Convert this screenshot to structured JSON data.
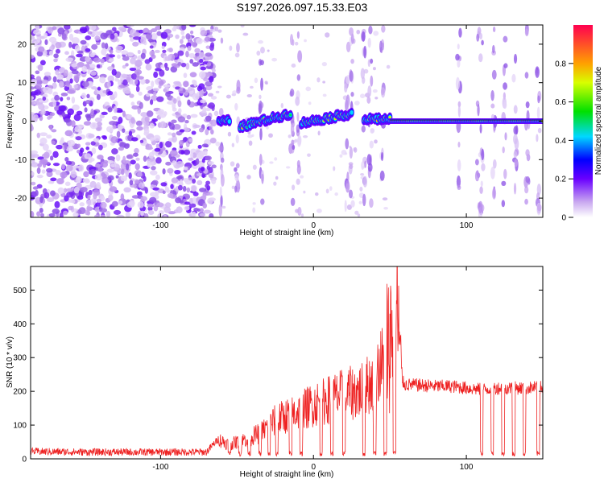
{
  "title": "S197.2026.097.15.33.E03",
  "chart_data": [
    {
      "type": "heatmap",
      "xlabel": "Height of straight line (km)",
      "ylabel": "Frequency (Hz)",
      "xlim": [
        -185,
        150
      ],
      "ylim": [
        -25,
        25
      ],
      "xticks": [
        -100,
        0,
        100
      ],
      "yticks": [
        -20,
        -10,
        0,
        10,
        20
      ],
      "colorbar": {
        "label": "Normalized spectral amplitude",
        "range": [
          0,
          1
        ],
        "ticks": [
          0,
          0.2,
          0.4,
          0.6,
          0.8
        ]
      },
      "track_segments": [
        {
          "x": [
            -62,
            -55
          ],
          "freq": 0
        },
        {
          "x": [
            -48,
            -15
          ],
          "freq": [
            -1.5,
            2.0
          ]
        },
        {
          "x": [
            -8,
            25
          ],
          "freq": [
            -0.5,
            2.0
          ]
        },
        {
          "x": [
            33,
            50
          ],
          "freq": 0.5
        },
        {
          "x": [
            50,
            150
          ],
          "freq": 0
        }
      ],
      "noise_region_x": [
        -185,
        -65
      ]
    },
    {
      "type": "line",
      "xlabel": "Height of straight line (km)",
      "ylabel": "SNR (10 * v/v)",
      "xlim": [
        -185,
        150
      ],
      "ylim": [
        0,
        570
      ],
      "xticks": [
        -100,
        0,
        100
      ],
      "yticks": [
        0,
        100,
        200,
        300,
        400,
        500
      ],
      "color": "#ee2222",
      "series": [
        {
          "name": "SNR",
          "description": "noisy trace",
          "x": [
            -185,
            -150,
            -100,
            -70,
            -62,
            -55,
            -45,
            -35,
            -25,
            -15,
            -8,
            0,
            10,
            20,
            25,
            30,
            38,
            45,
            48,
            52,
            55,
            58,
            60,
            70,
            80,
            90,
            100,
            110,
            120,
            130,
            140,
            150
          ],
          "values": [
            22,
            20,
            20,
            20,
            60,
            45,
            60,
            80,
            120,
            140,
            150,
            170,
            185,
            200,
            205,
            210,
            240,
            300,
            420,
            480,
            560,
            230,
            220,
            218,
            215,
            215,
            210,
            205,
            210,
            210,
            210,
            212
          ]
        }
      ],
      "dropouts_x": [
        -55,
        -48,
        -42,
        -35,
        -29,
        -24,
        -15,
        -8,
        5,
        12,
        20,
        33,
        40,
        47,
        53,
        110,
        117,
        124,
        131,
        138,
        147
      ]
    }
  ]
}
